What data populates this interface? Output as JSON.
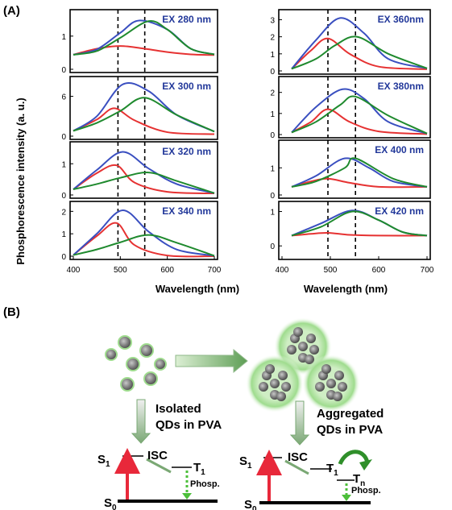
{
  "panel_a": {
    "label": "(A)",
    "ylabel": "Phosphorescence intensity (a. u.)",
    "xlabel": "Wavelength (nm)",
    "colors": {
      "total": "#3a4fc0",
      "red": "#e63232",
      "green": "#1f8a2e",
      "guide": "#000000",
      "label": "#22389a"
    }
  },
  "chart_data": [
    {
      "type": "line",
      "title": "EX 280 nm",
      "x_ticks": [
        400,
        500,
        600,
        700
      ],
      "xlim": [
        400,
        700
      ],
      "ylim": [
        0,
        1.7
      ],
      "y_ticks": [
        0,
        1
      ],
      "guides": [
        495,
        552
      ],
      "series": [
        {
          "values": {
            "x": [
              400,
              450,
              500,
              552,
              600,
              650,
              700
            ],
            "y": [
              0.44,
              0.62,
              0.7,
              0.62,
              0.52,
              0.45,
              0.43
            ]
          }
        },
        {
          "values": {
            "x": [
              400,
              450,
              500,
              540,
              600,
              650,
              700
            ],
            "y": [
              0.44,
              0.6,
              1.1,
              1.47,
              1.2,
              0.62,
              0.45
            ]
          }
        },
        {
          "values": {
            "x": [
              400,
              450,
              500,
              560,
              600,
              650,
              700
            ],
            "y": [
              0.44,
              0.55,
              0.95,
              1.45,
              1.2,
              0.62,
              0.45
            ]
          }
        }
      ]
    },
    {
      "type": "line",
      "title": "EX 300 nm",
      "x_ticks": [
        400,
        500,
        600,
        700
      ],
      "xlim": [
        400,
        700
      ],
      "ylim": [
        0,
        8.5
      ],
      "y_ticks": [
        0,
        6
      ],
      "guides": [
        495,
        552
      ],
      "series": [
        {
          "values": {
            "x": [
              400,
              450,
              487,
              530,
              600,
              700
            ],
            "y": [
              0.8,
              2.5,
              4.2,
              2.4,
              0.6,
              0.3
            ]
          }
        },
        {
          "values": {
            "x": [
              400,
              450,
              505,
              560,
              620,
              700
            ],
            "y": [
              0.8,
              3,
              7.8,
              6.8,
              3.2,
              0.7
            ]
          }
        },
        {
          "values": {
            "x": [
              400,
              450,
              500,
              552,
              620,
              700
            ],
            "y": [
              0.8,
              2,
              3.8,
              5.8,
              3.2,
              0.7
            ]
          }
        }
      ]
    },
    {
      "type": "line",
      "title": "EX 320 nm",
      "x_ticks": [
        400,
        500,
        600,
        700
      ],
      "xlim": [
        400,
        700
      ],
      "ylim": [
        0,
        1.6
      ],
      "y_ticks": [
        0,
        1
      ],
      "guides": [
        495,
        552
      ],
      "series": [
        {
          "values": {
            "x": [
              400,
              450,
              492,
              530,
              600,
              700
            ],
            "y": [
              0.18,
              0.7,
              0.95,
              0.4,
              0.1,
              0.05
            ]
          }
        },
        {
          "values": {
            "x": [
              400,
              450,
              505,
              560,
              620,
              700
            ],
            "y": [
              0.18,
              0.8,
              1.38,
              0.85,
              0.35,
              0.06
            ]
          }
        },
        {
          "values": {
            "x": [
              400,
              450,
              500,
              560,
              620,
              700
            ],
            "y": [
              0.18,
              0.35,
              0.55,
              0.72,
              0.45,
              0.06
            ]
          }
        }
      ]
    },
    {
      "type": "line",
      "title": "EX 340 nm",
      "x_ticks": [
        400,
        500,
        600,
        700
      ],
      "xlim": [
        400,
        700
      ],
      "ylim": [
        0,
        2.3
      ],
      "y_ticks": [
        0,
        1,
        2
      ],
      "guides": [
        495,
        552
      ],
      "series": [
        {
          "values": {
            "x": [
              400,
              450,
              492,
              530,
              600,
              700
            ],
            "y": [
              0.05,
              0.9,
              1.48,
              0.5,
              0.03,
              0
            ]
          }
        },
        {
          "values": {
            "x": [
              400,
              450,
              505,
              560,
              620,
              700
            ],
            "y": [
              0.05,
              1,
              2.05,
              1.1,
              0.3,
              0.02
            ]
          }
        },
        {
          "values": {
            "x": [
              400,
              450,
              500,
              560,
              620,
              700
            ],
            "y": [
              0.05,
              0.3,
              0.62,
              0.95,
              0.6,
              0.02
            ]
          }
        }
      ]
    },
    {
      "type": "line",
      "title": "EX 360nm",
      "x_ticks": [
        400,
        500,
        600,
        700
      ],
      "xlim": [
        400,
        700
      ],
      "ylim": [
        0,
        3.4
      ],
      "y_ticks": [
        0,
        1,
        2,
        3
      ],
      "guides": [
        495,
        552
      ],
      "series": [
        {
          "values": {
            "x": [
              420,
              460,
              495,
              540,
              600,
              700
            ],
            "y": [
              0.12,
              1.2,
              1.9,
              1.0,
              0.25,
              0.1
            ]
          }
        },
        {
          "values": {
            "x": [
              420,
              470,
              520,
              570,
              620,
              700
            ],
            "y": [
              0.12,
              1.8,
              3.1,
              2.2,
              0.7,
              0.15
            ]
          }
        },
        {
          "values": {
            "x": [
              420,
              470,
              510,
              555,
              620,
              700
            ],
            "y": [
              0.12,
              0.7,
              1.5,
              2.0,
              1.0,
              0.15
            ]
          }
        }
      ]
    },
    {
      "type": "line",
      "title": "EX 380nm",
      "x_ticks": [
        400,
        500,
        600,
        700
      ],
      "xlim": [
        400,
        700
      ],
      "ylim": [
        0,
        2.6
      ],
      "y_ticks": [
        0,
        1,
        2
      ],
      "guides": [
        495,
        552
      ],
      "series": [
        {
          "values": {
            "x": [
              420,
              460,
              495,
              540,
              600,
              700
            ],
            "y": [
              0.1,
              0.6,
              1.2,
              0.6,
              0.15,
              0.02
            ]
          }
        },
        {
          "values": {
            "x": [
              420,
              470,
              525,
              570,
              620,
              700
            ],
            "y": [
              0.1,
              1.3,
              2.15,
              1.7,
              0.6,
              0.05
            ]
          }
        },
        {
          "values": {
            "x": [
              420,
              470,
              520,
              552,
              620,
              700
            ],
            "y": [
              0.1,
              0.6,
              1.4,
              1.8,
              0.9,
              0.05
            ]
          }
        }
      ]
    },
    {
      "type": "line",
      "title": "EX 400 nm",
      "x_ticks": [
        400,
        500,
        600,
        700
      ],
      "xlim": [
        400,
        700
      ],
      "ylim": [
        0,
        1.9
      ],
      "y_ticks": [
        0,
        1
      ],
      "guides": [
        495,
        552
      ],
      "series": [
        {
          "values": {
            "x": [
              420,
              460,
              495,
              540,
              600,
              700
            ],
            "y": [
              0.3,
              0.5,
              0.6,
              0.45,
              0.3,
              0.3
            ]
          }
        },
        {
          "values": {
            "x": [
              420,
              470,
              530,
              580,
              630,
              700
            ],
            "y": [
              0.3,
              0.7,
              1.35,
              1.0,
              0.5,
              0.3
            ]
          }
        },
        {
          "values": {
            "x": [
              420,
              470,
              530,
              552,
              630,
              700
            ],
            "y": [
              0.3,
              0.5,
              1.0,
              1.35,
              0.6,
              0.3
            ]
          }
        }
      ]
    },
    {
      "type": "line",
      "title": "EX 420 nm",
      "x_ticks": [
        400,
        500,
        600,
        700
      ],
      "xlim": [
        400,
        700
      ],
      "ylim": [
        -0.3,
        1.2
      ],
      "y_ticks": [
        0,
        1
      ],
      "guides": [
        495,
        552
      ],
      "series": [
        {
          "values": {
            "x": [
              420,
              460,
              495,
              540,
              600,
              700
            ],
            "y": [
              0.3,
              0.35,
              0.38,
              0.32,
              0.3,
              0.3
            ]
          }
        },
        {
          "values": {
            "x": [
              420,
              480,
              545,
              600,
              650,
              700
            ],
            "y": [
              0.3,
              0.65,
              1.03,
              0.75,
              0.4,
              0.3
            ]
          }
        },
        {
          "values": {
            "x": [
              420,
              480,
              545,
              600,
              650,
              700
            ],
            "y": [
              0.3,
              0.55,
              1.0,
              0.75,
              0.4,
              0.3
            ]
          }
        }
      ]
    }
  ],
  "panel_b": {
    "label": "(B)",
    "isolated_label_1": "Isolated",
    "isolated_label_2": "QDs in PVA",
    "aggregated_label_1": "Aggregated",
    "aggregated_label_2": "QDs in PVA",
    "left": {
      "s1": "S",
      "s1_sub": "1",
      "s0": "S",
      "s0_sub": "0",
      "isc": "ISC",
      "t1": "T",
      "t1_sub": "1",
      "phosp": "Phosp."
    },
    "right": {
      "s1": "S",
      "s1_sub": "1",
      "s0": "S",
      "s0_sub": "0",
      "isc": "ISC",
      "t1": "T",
      "t1_sub": "1",
      "tn": "T",
      "tn_sub": "n",
      "phosp": "Phosp."
    }
  }
}
